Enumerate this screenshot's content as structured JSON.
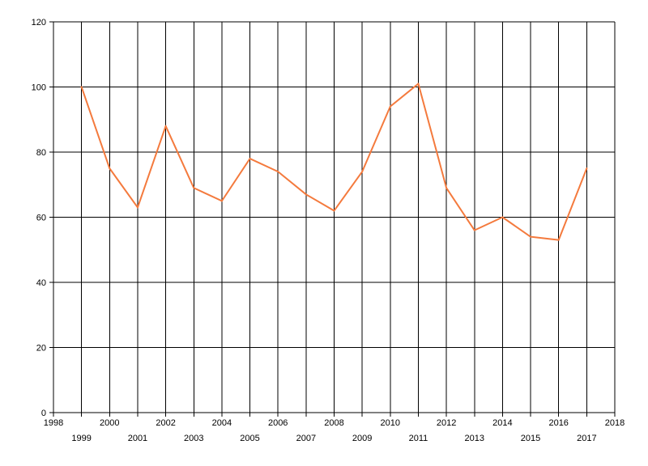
{
  "chart_data": {
    "type": "line",
    "title": "",
    "xlabel": "",
    "ylabel": "",
    "xlim": [
      1998,
      2018
    ],
    "ylim": [
      0,
      120
    ],
    "x_ticks": [
      "1998",
      "1999",
      "2000",
      "2001",
      "2002",
      "2003",
      "2004",
      "2005",
      "2006",
      "2007",
      "2008",
      "2009",
      "2010",
      "2011",
      "2012",
      "2013",
      "2014",
      "2015",
      "2016",
      "2017",
      "2018"
    ],
    "y_ticks": [
      "0",
      "20",
      "40",
      "60",
      "80",
      "100",
      "120"
    ],
    "grid": true,
    "line_color": "#F47A3D",
    "series": [
      {
        "x": [
          1999,
          2000,
          2001,
          2002,
          2003,
          2004,
          2005,
          2006,
          2007,
          2008,
          2009,
          2010,
          2011,
          2012,
          2013,
          2014,
          2015,
          2016,
          2017
        ],
        "values": [
          100,
          75,
          63,
          88,
          69,
          65,
          78,
          74,
          67,
          62,
          74,
          94,
          101,
          69,
          56,
          60,
          54,
          53,
          75
        ]
      }
    ]
  }
}
